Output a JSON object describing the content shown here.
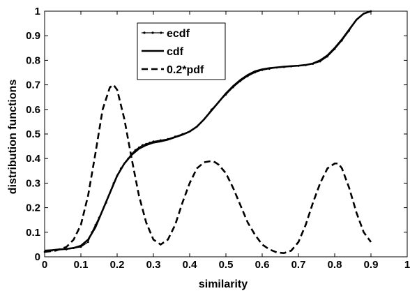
{
  "chart_data": {
    "type": "line",
    "title": "",
    "xlabel": "similarity",
    "ylabel": "distribution functions",
    "xlim": [
      0,
      1
    ],
    "ylim": [
      0,
      1
    ],
    "xticks": [
      "0",
      "0.1",
      "0.2",
      "0.3",
      "0.4",
      "0.5",
      "0.6",
      "0.7",
      "0.8",
      "0.9",
      "1"
    ],
    "yticks": [
      "0",
      "0.1",
      "0.2",
      "0.3",
      "0.4",
      "0.5",
      "0.6",
      "0.7",
      "0.8",
      "0.9",
      "1"
    ],
    "grid": false,
    "legend_position": "top-left",
    "series": [
      {
        "name": "ecdf",
        "style": "solid-thin-markers",
        "x": [
          0,
          0.02,
          0.04,
          0.06,
          0.08,
          0.1,
          0.12,
          0.13,
          0.14,
          0.15,
          0.16,
          0.17,
          0.18,
          0.19,
          0.2,
          0.21,
          0.22,
          0.23,
          0.24,
          0.25,
          0.26,
          0.27,
          0.28,
          0.29,
          0.3,
          0.32,
          0.34,
          0.36,
          0.38,
          0.4,
          0.42,
          0.44,
          0.46,
          0.48,
          0.5,
          0.52,
          0.54,
          0.56,
          0.58,
          0.6,
          0.62,
          0.64,
          0.66,
          0.68,
          0.7,
          0.72,
          0.74,
          0.76,
          0.78,
          0.8,
          0.82,
          0.84,
          0.86,
          0.88,
          0.9
        ],
        "y": [
          0.02,
          0.025,
          0.03,
          0.03,
          0.035,
          0.04,
          0.06,
          0.1,
          0.13,
          0.16,
          0.19,
          0.22,
          0.26,
          0.3,
          0.33,
          0.36,
          0.38,
          0.4,
          0.42,
          0.435,
          0.445,
          0.455,
          0.46,
          0.465,
          0.47,
          0.475,
          0.48,
          0.49,
          0.5,
          0.51,
          0.53,
          0.56,
          0.6,
          0.63,
          0.66,
          0.69,
          0.715,
          0.735,
          0.75,
          0.76,
          0.765,
          0.77,
          0.772,
          0.775,
          0.777,
          0.78,
          0.785,
          0.795,
          0.815,
          0.845,
          0.88,
          0.92,
          0.965,
          0.99,
          1.0
        ]
      },
      {
        "name": "cdf",
        "style": "solid-thick",
        "x": [
          0,
          0.02,
          0.04,
          0.06,
          0.08,
          0.1,
          0.12,
          0.14,
          0.16,
          0.18,
          0.2,
          0.22,
          0.24,
          0.26,
          0.28,
          0.3,
          0.32,
          0.34,
          0.36,
          0.38,
          0.4,
          0.42,
          0.44,
          0.46,
          0.48,
          0.5,
          0.52,
          0.54,
          0.56,
          0.58,
          0.6,
          0.62,
          0.64,
          0.66,
          0.68,
          0.7,
          0.72,
          0.74,
          0.76,
          0.78,
          0.8,
          0.82,
          0.84,
          0.86,
          0.88,
          0.9
        ],
        "y": [
          0.025,
          0.027,
          0.03,
          0.032,
          0.036,
          0.045,
          0.07,
          0.12,
          0.19,
          0.26,
          0.33,
          0.38,
          0.415,
          0.44,
          0.455,
          0.465,
          0.47,
          0.477,
          0.487,
          0.497,
          0.51,
          0.53,
          0.56,
          0.595,
          0.63,
          0.665,
          0.695,
          0.72,
          0.74,
          0.755,
          0.763,
          0.768,
          0.771,
          0.774,
          0.776,
          0.778,
          0.781,
          0.787,
          0.8,
          0.82,
          0.85,
          0.885,
          0.925,
          0.965,
          0.99,
          1.0
        ]
      },
      {
        "name": "0.2*pdf",
        "style": "dashed-thick",
        "x": [
          0,
          0.03,
          0.06,
          0.08,
          0.1,
          0.12,
          0.14,
          0.16,
          0.18,
          0.19,
          0.2,
          0.22,
          0.24,
          0.26,
          0.28,
          0.3,
          0.32,
          0.34,
          0.36,
          0.38,
          0.4,
          0.42,
          0.44,
          0.46,
          0.47,
          0.48,
          0.5,
          0.52,
          0.54,
          0.56,
          0.58,
          0.6,
          0.62,
          0.64,
          0.66,
          0.68,
          0.7,
          0.72,
          0.74,
          0.76,
          0.78,
          0.8,
          0.81,
          0.82,
          0.84,
          0.86,
          0.88,
          0.9
        ],
        "y": [
          0.02,
          0.025,
          0.04,
          0.07,
          0.13,
          0.25,
          0.42,
          0.6,
          0.69,
          0.7,
          0.68,
          0.56,
          0.4,
          0.25,
          0.14,
          0.07,
          0.05,
          0.07,
          0.13,
          0.22,
          0.3,
          0.36,
          0.385,
          0.39,
          0.385,
          0.375,
          0.34,
          0.28,
          0.21,
          0.14,
          0.09,
          0.05,
          0.03,
          0.018,
          0.015,
          0.025,
          0.06,
          0.13,
          0.22,
          0.3,
          0.36,
          0.38,
          0.38,
          0.36,
          0.28,
          0.18,
          0.1,
          0.06
        ]
      }
    ]
  }
}
